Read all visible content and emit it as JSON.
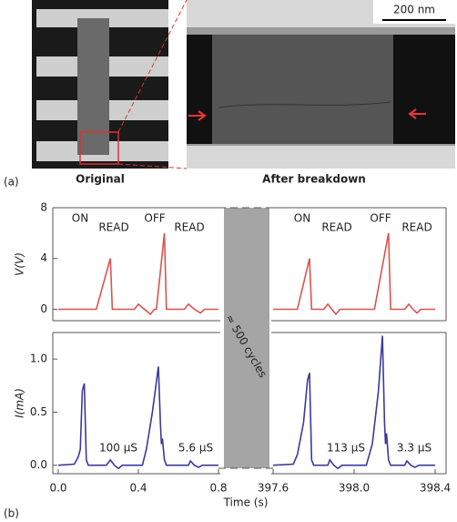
{
  "panel_a": {
    "label": "(a)",
    "left_caption": "Original",
    "right_caption": "After breakdown",
    "scale_bar": "200 nm"
  },
  "panel_b": {
    "label": "(b)",
    "gap_text": "≈ 500 cycles",
    "xlabel": "Time (s)"
  },
  "chart_data": [
    {
      "type": "line",
      "ylabel": "V(V)",
      "color": "#d9534f",
      "xlim": [
        0,
        0.8
      ],
      "ylim": [
        -0.9,
        8
      ],
      "yticks": [
        0,
        4,
        8
      ],
      "annotations": [
        "ON",
        "READ",
        "OFF",
        "READ"
      ],
      "x": [
        0,
        0.19,
        0.26,
        0.27,
        0.38,
        0.4,
        0.43,
        0.46,
        0.48,
        0.49,
        0.53,
        0.54,
        0.63,
        0.65,
        0.68,
        0.71,
        0.73,
        0.8
      ],
      "values": [
        0,
        0,
        4,
        0,
        0,
        0.4,
        0,
        -0.4,
        0,
        0,
        6,
        0,
        0,
        0.4,
        0,
        -0.3,
        0,
        0
      ]
    },
    {
      "type": "line",
      "color": "#d9534f",
      "xlim": [
        397.6,
        398.4
      ],
      "ylim": [
        -0.9,
        8
      ],
      "annotations": [
        "ON",
        "READ",
        "OFF",
        "READ"
      ],
      "x": [
        397.6,
        397.72,
        397.78,
        397.79,
        397.85,
        397.87,
        397.89,
        397.91,
        397.93,
        398.1,
        398.17,
        398.18,
        398.25,
        398.27,
        398.29,
        398.31,
        398.33,
        398.4
      ],
      "values": [
        0,
        0,
        4,
        0,
        0,
        0.4,
        0,
        -0.4,
        0,
        0,
        6,
        0,
        0,
        0.4,
        0,
        -0.3,
        0,
        0
      ]
    },
    {
      "type": "line",
      "ylabel": "I(mA)",
      "color": "#3a3a9a",
      "xlim": [
        0,
        0.8
      ],
      "ylim": [
        -0.08,
        1.25
      ],
      "yticks": [
        {
          "value": 0,
          "label": "0.0"
        },
        0.5,
        {
          "value": 1,
          "label": "1.0"
        }
      ],
      "xticks": [
        {
          "value": 0,
          "label": "0.0"
        },
        0.4,
        0.8
      ],
      "annotations": [
        "100 µS",
        "5.6 µS"
      ],
      "x": [
        0,
        0.08,
        0.1,
        0.11,
        0.12,
        0.13,
        0.14,
        0.15,
        0.24,
        0.26,
        0.28,
        0.3,
        0.32,
        0.42,
        0.44,
        0.47,
        0.5,
        0.51,
        0.515,
        0.52,
        0.53,
        0.54,
        0.65,
        0.66,
        0.68,
        0.7,
        0.72,
        0.8
      ],
      "values": [
        0,
        0.01,
        0.08,
        0.15,
        0.7,
        0.77,
        0.05,
        0,
        0,
        0.05,
        0,
        -0.03,
        0,
        0,
        0.15,
        0.5,
        0.93,
        0.4,
        0.2,
        0.25,
        0.05,
        0,
        0,
        0.04,
        0,
        -0.02,
        0,
        0
      ]
    },
    {
      "type": "line",
      "color": "#3a3a9a",
      "xlim": [
        397.6,
        398.4
      ],
      "ylim": [
        -0.08,
        1.25
      ],
      "xticks": [
        397.6,
        {
          "value": 398,
          "label": "398.0"
        },
        398.4
      ],
      "annotations": [
        "113 µS",
        "3.3 µS"
      ],
      "x": [
        397.6,
        397.7,
        397.72,
        397.75,
        397.77,
        397.78,
        397.79,
        397.8,
        397.87,
        397.88,
        397.9,
        397.92,
        397.94,
        398.06,
        398.09,
        398.12,
        398.14,
        398.15,
        398.155,
        398.16,
        398.17,
        398.18,
        398.25,
        398.26,
        398.28,
        398.3,
        398.32,
        398.4
      ],
      "values": [
        0,
        0.01,
        0.1,
        0.4,
        0.8,
        0.87,
        0.05,
        0,
        0,
        0.05,
        0,
        -0.03,
        0,
        0,
        0.2,
        0.7,
        1.22,
        0.4,
        0.2,
        0.3,
        0.05,
        0,
        0,
        0.04,
        0,
        -0.02,
        0,
        0
      ]
    }
  ]
}
